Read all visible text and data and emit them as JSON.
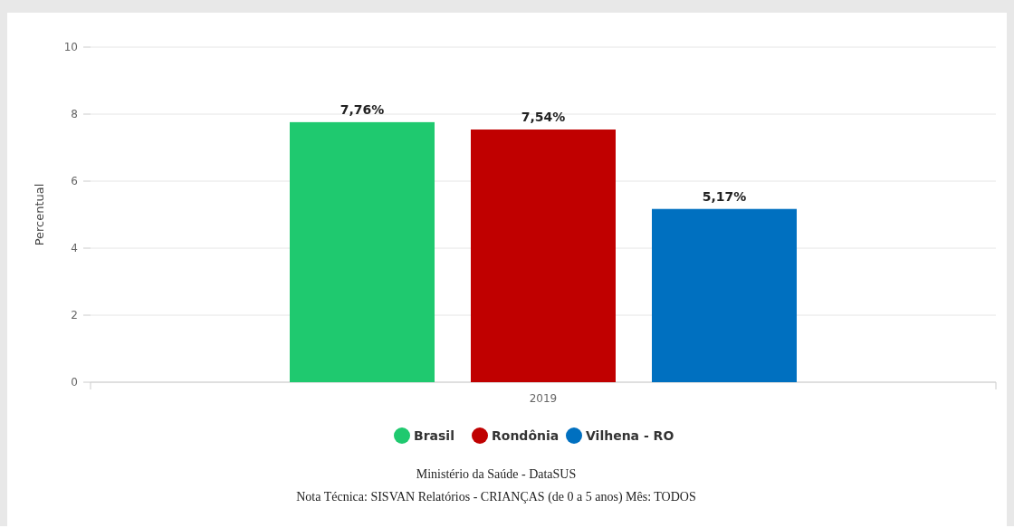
{
  "chart_data": {
    "type": "bar",
    "categories": [
      "2019"
    ],
    "ylabel": "Percentual",
    "series": [
      {
        "name": "Brasil",
        "color": "#1fc96f",
        "values": [
          7.76
        ],
        "value_labels": [
          "7,76%"
        ]
      },
      {
        "name": "Rondônia",
        "color": "#c00000",
        "values": [
          7.54
        ],
        "value_labels": [
          "7,54%"
        ]
      },
      {
        "name": "Vilhena - RO",
        "color": "#0070c0",
        "values": [
          5.17
        ],
        "value_labels": [
          "5,17%"
        ]
      }
    ],
    "ylim": [
      0,
      10
    ],
    "yticks": [
      0,
      2,
      4,
      6,
      8,
      10
    ],
    "grid": "y",
    "legend": "bottom",
    "annotations": [
      "Ministério da Saúde - DataSUS",
      "Nota Técnica: SISVAN Relatórios - CRIANÇAS (de 0 a 5 anos) Mês: TODOS"
    ]
  }
}
